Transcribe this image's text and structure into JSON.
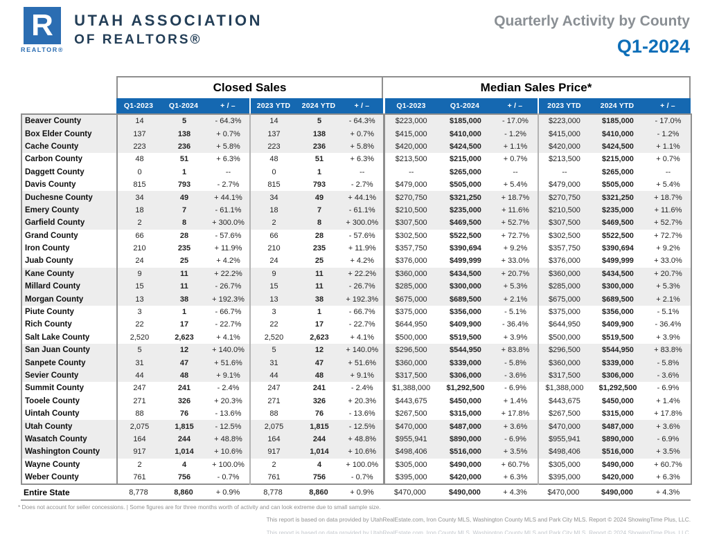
{
  "header": {
    "logo": {
      "letter": "R",
      "caption": "REALTOR®"
    },
    "org": {
      "line1": "UTAH ASSOCIATION",
      "line2": "OF REALTORS®"
    },
    "title": "Quarterly Activity by County",
    "period": "Q1-2024"
  },
  "table": {
    "section_closed_sales": "Closed Sales",
    "section_median_price": "Median Sales Price*",
    "columns": [
      "Q1-2023",
      "Q1-2024",
      "+ / –",
      "2023 YTD",
      "2024 YTD",
      "+ / –",
      "Q1-2023",
      "Q1-2024",
      "+ / –",
      "2023 YTD",
      "2024 YTD",
      "+ / –"
    ],
    "rows": [
      {
        "county": "Beaver County",
        "cs": [
          "14",
          "5",
          "- 64.3%"
        ],
        "cs_ytd": [
          "14",
          "5",
          "- 64.3%"
        ],
        "mp": [
          "$223,000",
          "$185,000",
          "- 17.0%"
        ],
        "mp_ytd": [
          "$223,000",
          "$185,000",
          "- 17.0%"
        ]
      },
      {
        "county": "Box Elder County",
        "cs": [
          "137",
          "138",
          "+ 0.7%"
        ],
        "cs_ytd": [
          "137",
          "138",
          "+ 0.7%"
        ],
        "mp": [
          "$415,000",
          "$410,000",
          "- 1.2%"
        ],
        "mp_ytd": [
          "$415,000",
          "$410,000",
          "- 1.2%"
        ]
      },
      {
        "county": "Cache County",
        "cs": [
          "223",
          "236",
          "+ 5.8%"
        ],
        "cs_ytd": [
          "223",
          "236",
          "+ 5.8%"
        ],
        "mp": [
          "$420,000",
          "$424,500",
          "+ 1.1%"
        ],
        "mp_ytd": [
          "$420,000",
          "$424,500",
          "+ 1.1%"
        ]
      },
      {
        "county": "Carbon County",
        "cs": [
          "48",
          "51",
          "+ 6.3%"
        ],
        "cs_ytd": [
          "48",
          "51",
          "+ 6.3%"
        ],
        "mp": [
          "$213,500",
          "$215,000",
          "+ 0.7%"
        ],
        "mp_ytd": [
          "$213,500",
          "$215,000",
          "+ 0.7%"
        ]
      },
      {
        "county": "Daggett County",
        "cs": [
          "0",
          "1",
          "--"
        ],
        "cs_ytd": [
          "0",
          "1",
          "--"
        ],
        "mp": [
          "--",
          "$265,000",
          "--"
        ],
        "mp_ytd": [
          "--",
          "$265,000",
          "--"
        ]
      },
      {
        "county": "Davis County",
        "cs": [
          "815",
          "793",
          "- 2.7%"
        ],
        "cs_ytd": [
          "815",
          "793",
          "- 2.7%"
        ],
        "mp": [
          "$479,000",
          "$505,000",
          "+ 5.4%"
        ],
        "mp_ytd": [
          "$479,000",
          "$505,000",
          "+ 5.4%"
        ]
      },
      {
        "county": "Duchesne County",
        "cs": [
          "34",
          "49",
          "+ 44.1%"
        ],
        "cs_ytd": [
          "34",
          "49",
          "+ 44.1%"
        ],
        "mp": [
          "$270,750",
          "$321,250",
          "+ 18.7%"
        ],
        "mp_ytd": [
          "$270,750",
          "$321,250",
          "+ 18.7%"
        ]
      },
      {
        "county": "Emery County",
        "cs": [
          "18",
          "7",
          "- 61.1%"
        ],
        "cs_ytd": [
          "18",
          "7",
          "- 61.1%"
        ],
        "mp": [
          "$210,500",
          "$235,000",
          "+ 11.6%"
        ],
        "mp_ytd": [
          "$210,500",
          "$235,000",
          "+ 11.6%"
        ]
      },
      {
        "county": "Garfield County",
        "cs": [
          "2",
          "8",
          "+ 300.0%"
        ],
        "cs_ytd": [
          "2",
          "8",
          "+ 300.0%"
        ],
        "mp": [
          "$307,500",
          "$469,500",
          "+ 52.7%"
        ],
        "mp_ytd": [
          "$307,500",
          "$469,500",
          "+ 52.7%"
        ]
      },
      {
        "county": "Grand County",
        "cs": [
          "66",
          "28",
          "- 57.6%"
        ],
        "cs_ytd": [
          "66",
          "28",
          "- 57.6%"
        ],
        "mp": [
          "$302,500",
          "$522,500",
          "+ 72.7%"
        ],
        "mp_ytd": [
          "$302,500",
          "$522,500",
          "+ 72.7%"
        ]
      },
      {
        "county": "Iron County",
        "cs": [
          "210",
          "235",
          "+ 11.9%"
        ],
        "cs_ytd": [
          "210",
          "235",
          "+ 11.9%"
        ],
        "mp": [
          "$357,750",
          "$390,694",
          "+ 9.2%"
        ],
        "mp_ytd": [
          "$357,750",
          "$390,694",
          "+ 9.2%"
        ]
      },
      {
        "county": "Juab County",
        "cs": [
          "24",
          "25",
          "+ 4.2%"
        ],
        "cs_ytd": [
          "24",
          "25",
          "+ 4.2%"
        ],
        "mp": [
          "$376,000",
          "$499,999",
          "+ 33.0%"
        ],
        "mp_ytd": [
          "$376,000",
          "$499,999",
          "+ 33.0%"
        ]
      },
      {
        "county": "Kane County",
        "cs": [
          "9",
          "11",
          "+ 22.2%"
        ],
        "cs_ytd": [
          "9",
          "11",
          "+ 22.2%"
        ],
        "mp": [
          "$360,000",
          "$434,500",
          "+ 20.7%"
        ],
        "mp_ytd": [
          "$360,000",
          "$434,500",
          "+ 20.7%"
        ]
      },
      {
        "county": "Millard County",
        "cs": [
          "15",
          "11",
          "- 26.7%"
        ],
        "cs_ytd": [
          "15",
          "11",
          "- 26.7%"
        ],
        "mp": [
          "$285,000",
          "$300,000",
          "+ 5.3%"
        ],
        "mp_ytd": [
          "$285,000",
          "$300,000",
          "+ 5.3%"
        ]
      },
      {
        "county": "Morgan County",
        "cs": [
          "13",
          "38",
          "+ 192.3%"
        ],
        "cs_ytd": [
          "13",
          "38",
          "+ 192.3%"
        ],
        "mp": [
          "$675,000",
          "$689,500",
          "+ 2.1%"
        ],
        "mp_ytd": [
          "$675,000",
          "$689,500",
          "+ 2.1%"
        ]
      },
      {
        "county": "Piute County",
        "cs": [
          "3",
          "1",
          "- 66.7%"
        ],
        "cs_ytd": [
          "3",
          "1",
          "- 66.7%"
        ],
        "mp": [
          "$375,000",
          "$356,000",
          "- 5.1%"
        ],
        "mp_ytd": [
          "$375,000",
          "$356,000",
          "- 5.1%"
        ]
      },
      {
        "county": "Rich County",
        "cs": [
          "22",
          "17",
          "- 22.7%"
        ],
        "cs_ytd": [
          "22",
          "17",
          "- 22.7%"
        ],
        "mp": [
          "$644,950",
          "$409,900",
          "- 36.4%"
        ],
        "mp_ytd": [
          "$644,950",
          "$409,900",
          "- 36.4%"
        ]
      },
      {
        "county": "Salt Lake County",
        "cs": [
          "2,520",
          "2,623",
          "+ 4.1%"
        ],
        "cs_ytd": [
          "2,520",
          "2,623",
          "+ 4.1%"
        ],
        "mp": [
          "$500,000",
          "$519,500",
          "+ 3.9%"
        ],
        "mp_ytd": [
          "$500,000",
          "$519,500",
          "+ 3.9%"
        ]
      },
      {
        "county": "San Juan County",
        "cs": [
          "5",
          "12",
          "+ 140.0%"
        ],
        "cs_ytd": [
          "5",
          "12",
          "+ 140.0%"
        ],
        "mp": [
          "$296,500",
          "$544,950",
          "+ 83.8%"
        ],
        "mp_ytd": [
          "$296,500",
          "$544,950",
          "+ 83.8%"
        ]
      },
      {
        "county": "Sanpete County",
        "cs": [
          "31",
          "47",
          "+ 51.6%"
        ],
        "cs_ytd": [
          "31",
          "47",
          "+ 51.6%"
        ],
        "mp": [
          "$360,000",
          "$339,000",
          "- 5.8%"
        ],
        "mp_ytd": [
          "$360,000",
          "$339,000",
          "- 5.8%"
        ]
      },
      {
        "county": "Sevier County",
        "cs": [
          "44",
          "48",
          "+ 9.1%"
        ],
        "cs_ytd": [
          "44",
          "48",
          "+ 9.1%"
        ],
        "mp": [
          "$317,500",
          "$306,000",
          "- 3.6%"
        ],
        "mp_ytd": [
          "$317,500",
          "$306,000",
          "- 3.6%"
        ]
      },
      {
        "county": "Summit County",
        "cs": [
          "247",
          "241",
          "- 2.4%"
        ],
        "cs_ytd": [
          "247",
          "241",
          "- 2.4%"
        ],
        "mp": [
          "$1,388,000",
          "$1,292,500",
          "- 6.9%"
        ],
        "mp_ytd": [
          "$1,388,000",
          "$1,292,500",
          "- 6.9%"
        ]
      },
      {
        "county": "Tooele County",
        "cs": [
          "271",
          "326",
          "+ 20.3%"
        ],
        "cs_ytd": [
          "271",
          "326",
          "+ 20.3%"
        ],
        "mp": [
          "$443,675",
          "$450,000",
          "+ 1.4%"
        ],
        "mp_ytd": [
          "$443,675",
          "$450,000",
          "+ 1.4%"
        ]
      },
      {
        "county": "Uintah County",
        "cs": [
          "88",
          "76",
          "- 13.6%"
        ],
        "cs_ytd": [
          "88",
          "76",
          "- 13.6%"
        ],
        "mp": [
          "$267,500",
          "$315,000",
          "+ 17.8%"
        ],
        "mp_ytd": [
          "$267,500",
          "$315,000",
          "+ 17.8%"
        ]
      },
      {
        "county": "Utah County",
        "cs": [
          "2,075",
          "1,815",
          "- 12.5%"
        ],
        "cs_ytd": [
          "2,075",
          "1,815",
          "- 12.5%"
        ],
        "mp": [
          "$470,000",
          "$487,000",
          "+ 3.6%"
        ],
        "mp_ytd": [
          "$470,000",
          "$487,000",
          "+ 3.6%"
        ]
      },
      {
        "county": "Wasatch County",
        "cs": [
          "164",
          "244",
          "+ 48.8%"
        ],
        "cs_ytd": [
          "164",
          "244",
          "+ 48.8%"
        ],
        "mp": [
          "$955,941",
          "$890,000",
          "- 6.9%"
        ],
        "mp_ytd": [
          "$955,941",
          "$890,000",
          "- 6.9%"
        ]
      },
      {
        "county": "Washington County",
        "cs": [
          "917",
          "1,014",
          "+ 10.6%"
        ],
        "cs_ytd": [
          "917",
          "1,014",
          "+ 10.6%"
        ],
        "mp": [
          "$498,406",
          "$516,000",
          "+ 3.5%"
        ],
        "mp_ytd": [
          "$498,406",
          "$516,000",
          "+ 3.5%"
        ]
      },
      {
        "county": "Wayne County",
        "cs": [
          "2",
          "4",
          "+ 100.0%"
        ],
        "cs_ytd": [
          "2",
          "4",
          "+ 100.0%"
        ],
        "mp": [
          "$305,000",
          "$490,000",
          "+ 60.7%"
        ],
        "mp_ytd": [
          "$305,000",
          "$490,000",
          "+ 60.7%"
        ]
      },
      {
        "county": "Weber County",
        "cs": [
          "761",
          "756",
          "- 0.7%"
        ],
        "cs_ytd": [
          "761",
          "756",
          "- 0.7%"
        ],
        "mp": [
          "$395,000",
          "$420,000",
          "+ 6.3%"
        ],
        "mp_ytd": [
          "$395,000",
          "$420,000",
          "+ 6.3%"
        ]
      }
    ],
    "total": {
      "county": "Entire State",
      "cs": [
        "8,778",
        "8,860",
        "+ 0.9%"
      ],
      "cs_ytd": [
        "8,778",
        "8,860",
        "+ 0.9%"
      ],
      "mp": [
        "$470,000",
        "$490,000",
        "+ 4.3%"
      ],
      "mp_ytd": [
        "$470,000",
        "$490,000",
        "+ 4.3%"
      ]
    }
  },
  "footnotes": {
    "note1": "* Does not account for seller concessions. | Some figures are for three months worth of activity and can look extreme due to small sample size.",
    "note2": "This report is based on data provided by UtahRealEstate.com, Iron County MLS, Washington County MLS and Park City MLS. Report © 2024 ShowingTime Plus, LLC.",
    "note3": "This report is based on data provided by UtahRealEstate.com, Iron County MLS, Washington County MLS and Park City MLS. Report © 2024 ShowingTime Plus, LLC."
  },
  "colors": {
    "header_blue": "#1568b1",
    "accent_blue": "#0d6eb8",
    "logo_blue": "#2b6db2",
    "navy": "#233e57",
    "title_gray": "#8a8f94",
    "row_shade": "#ededed",
    "border_gray": "#8e8e8e"
  }
}
